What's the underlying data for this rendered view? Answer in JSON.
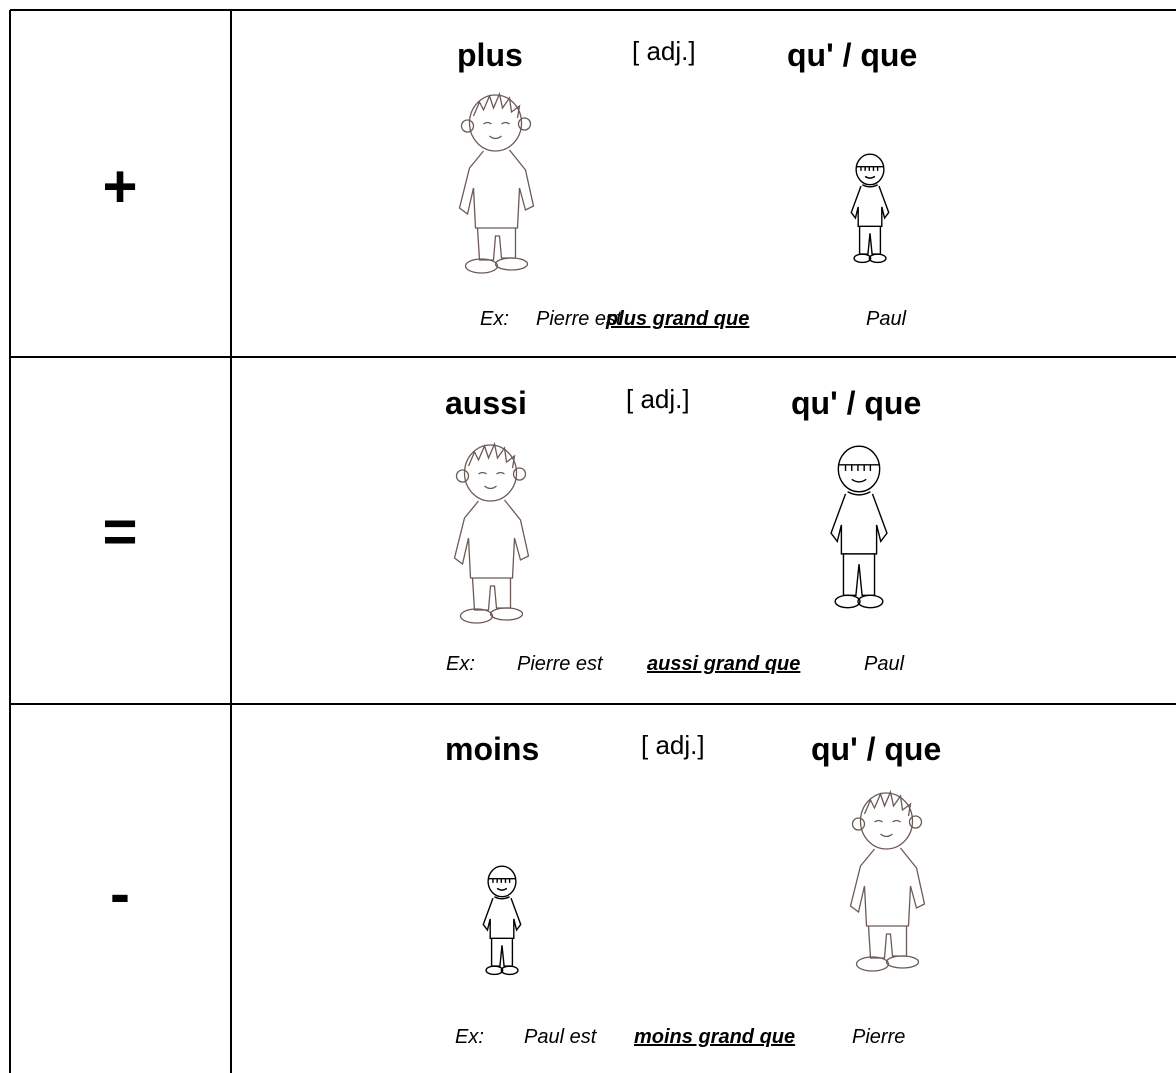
{
  "table": {
    "rows": [
      {
        "symbol": "+",
        "left": "plus",
        "adj": "[ adj.]",
        "right": "qu' / que",
        "example": {
          "prefix": "Ex:",
          "subject": "Pierre est",
          "emphasis": "plus grand que",
          "object": "Paul"
        }
      },
      {
        "symbol": "=",
        "left": "aussi",
        "adj": "[ adj.]",
        "right": "qu' / que",
        "example": {
          "prefix": "Ex:",
          "subject": "Pierre est",
          "emphasis": "aussi grand que",
          "object": "Paul"
        }
      },
      {
        "symbol": "-",
        "left": "moins",
        "adj": "[ adj.]",
        "right": "qu' / que",
        "example": {
          "prefix": "Ex:",
          "subject": "Paul est",
          "emphasis": "moins grand que",
          "object": "Pierre"
        }
      }
    ]
  }
}
